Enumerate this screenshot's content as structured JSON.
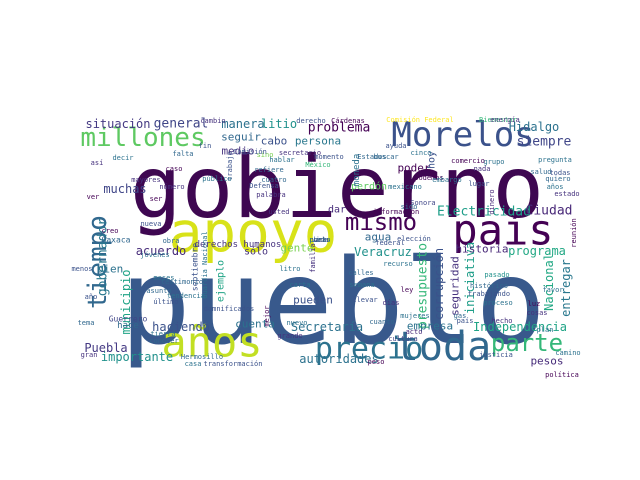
{
  "words": [
    {
      "text": "pueblo",
      "color": "#38598c"
    },
    {
      "text": "gobierno",
      "color": "#3e0751"
    },
    {
      "text": "Morelos",
      "color": "#3b528b"
    },
    {
      "text": "apoyo",
      "color": "#d8e219"
    },
    {
      "text": "toda",
      "color": "#31688e"
    },
    {
      "text": "años",
      "color": "#c2df23"
    },
    {
      "text": "país",
      "color": "#440154"
    },
    {
      "text": "precio",
      "color": "#2c728e"
    },
    {
      "text": "parte",
      "color": "#35b779"
    },
    {
      "text": "millones",
      "color": "#5ec962"
    },
    {
      "text": "tiempo",
      "color": "#31688e"
    },
    {
      "text": "mismo",
      "color": "#440154"
    },
    {
      "text": "Electricidad",
      "color": "#1f9e89"
    },
    {
      "text": "Ciudad",
      "color": "#482878"
    },
    {
      "text": "Independencia",
      "color": "#20a486"
    },
    {
      "text": "Nacional",
      "color": "#22a884"
    },
    {
      "text": "entregar",
      "color": "#2a788e"
    },
    {
      "text": "Puebla",
      "color": "#443983"
    },
    {
      "text": "importante",
      "color": "#21918c"
    },
    {
      "text": "autoridades",
      "color": "#2c728e"
    },
    {
      "text": "pesos",
      "color": "#472c7a"
    },
    {
      "text": "presupuesto",
      "color": "#35b779"
    },
    {
      "text": "corrupción",
      "color": "#3b528b"
    },
    {
      "text": "seguridad",
      "color": "#46327e"
    },
    {
      "text": "iniciativa",
      "color": "#1f9e89"
    },
    {
      "text": "Hidalgo",
      "color": "#2c728e"
    },
    {
      "text": "siempre",
      "color": "#404688"
    },
    {
      "text": "Secretaría",
      "color": "#2c728e"
    },
    {
      "text": "historia",
      "color": "#482878"
    },
    {
      "text": "programa",
      "color": "#22a884"
    },
    {
      "text": "gobernador",
      "color": "#2a788e"
    },
    {
      "text": "municipio",
      "color": "#20a486"
    },
    {
      "text": "haciendo",
      "color": "#3b528b"
    },
    {
      "text": "situación",
      "color": "#443983"
    },
    {
      "text": "general",
      "color": "#404688"
    },
    {
      "text": "manera",
      "color": "#2c728e"
    },
    {
      "text": "litio",
      "color": "#21918c"
    },
    {
      "text": "problema",
      "color": "#440154"
    },
    {
      "text": "seguir",
      "color": "#31688e"
    },
    {
      "text": "cabo",
      "color": "#3b528b"
    },
    {
      "text": "persona",
      "color": "#2a788e"
    },
    {
      "text": "medio",
      "color": "#46327e"
    },
    {
      "text": "acuerdo",
      "color": "#472c7a"
    },
    {
      "text": "muchas",
      "color": "#404688"
    },
    {
      "text": "bien",
      "color": "#2c728e"
    },
    {
      "text": "gente",
      "color": "#7ad151"
    },
    {
      "text": "cuenta",
      "color": "#2c728e"
    },
    {
      "text": "pueden",
      "color": "#3b528b"
    },
    {
      "text": "agua",
      "color": "#31688e"
    },
    {
      "text": "Veracruz",
      "color": "#21918c"
    },
    {
      "text": "empresa",
      "color": "#2c728e"
    },
    {
      "text": "poder",
      "color": "#440154"
    },
    {
      "text": "hoy",
      "color": "#3b528b"
    },
    {
      "text": "perdón",
      "color": "#5ec962"
    },
    {
      "text": "moneda",
      "color": "#2c728e"
    },
    {
      "text": "dar",
      "color": "#472c7a"
    },
    {
      "text": "sólo",
      "color": "#46327e"
    },
    {
      "text": "ejemplo",
      "color": "#20a486"
    },
    {
      "text": "derechos humanos",
      "color": "#46327e"
    },
    {
      "text": "hace",
      "color": "#31688e"
    },
    {
      "text": "Guerrero",
      "color": "#404688"
    },
    {
      "text": "Oaxaca",
      "color": "#31688e"
    },
    {
      "text": "septiembre",
      "color": "#3b528b"
    },
    {
      "text": "Guardia Nacional",
      "color": "#2c728e"
    },
    {
      "text": "Comisión Federal",
      "color": "#fde725"
    },
    {
      "text": "Bienestar",
      "color": "#35b779"
    },
    {
      "text": "creo",
      "color": "#440154"
    },
    {
      "text": "nuevo",
      "color": "#2c728e"
    },
    {
      "text": "usted",
      "color": "#46327e"
    },
    {
      "text": "cuanto",
      "color": "#31688e"
    },
    {
      "text": "federal",
      "color": "#3b528b"
    },
    {
      "text": "información",
      "color": "#440154"
    },
    {
      "text": "México",
      "color": "#35b779"
    },
    {
      "text": "mexicano",
      "color": "#2c728e"
    },
    {
      "text": "trabajo",
      "color": "#3b528b"
    },
    {
      "text": "Sonora",
      "color": "#404688"
    },
    {
      "text": "podemos",
      "color": "#440154"
    },
    {
      "text": "sido",
      "color": "#31688e"
    },
    {
      "text": "cinco",
      "color": "#2c728e"
    },
    {
      "text": "todas",
      "color": "#3b528b"
    },
    {
      "text": "quiero",
      "color": "#31688e"
    },
    {
      "text": "años",
      "color": "#2c728e"
    },
    {
      "text": "dinero",
      "color": "#482878"
    },
    {
      "text": "nada",
      "color": "#46327e"
    },
    {
      "text": "reunión",
      "color": "#440154"
    },
    {
      "text": "favor",
      "color": "#2c728e"
    },
    {
      "text": "proceso",
      "color": "#2c728e"
    },
    {
      "text": "trabajando",
      "color": "#3b528b"
    },
    {
      "text": "histórico",
      "color": "#31688e"
    },
    {
      "text": "pasado",
      "color": "#21918c"
    },
    {
      "text": "hecho",
      "color": "#46327e"
    },
    {
      "text": "política",
      "color": "#440154"
    },
    {
      "text": "camino",
      "color": "#2c728e"
    },
    {
      "text": "justicia",
      "color": "#3b528b"
    },
    {
      "text": "peso",
      "color": "#440154"
    },
    {
      "text": "acto",
      "color": "#482878"
    },
    {
      "text": "cultura",
      "color": "#404688"
    },
    {
      "text": "semana",
      "color": "#2c728e"
    },
    {
      "text": "llevar",
      "color": "#3b528b"
    },
    {
      "text": "calles",
      "color": "#31688e"
    },
    {
      "text": "litro",
      "color": "#2c728e"
    },
    {
      "text": "cuatro",
      "color": "#31688e"
    },
    {
      "text": "sino",
      "color": "#7ad151"
    },
    {
      "text": "Defensa",
      "color": "#3b528b"
    },
    {
      "text": "palabra",
      "color": "#46327e"
    },
    {
      "text": "público",
      "color": "#2c728e"
    },
    {
      "text": "número",
      "color": "#46327e"
    },
    {
      "text": "último",
      "color": "#3b528b"
    },
    {
      "text": "tierra",
      "color": "#2c728e"
    },
    {
      "text": "conocer",
      "color": "#31688e"
    },
    {
      "text": "mayores",
      "color": "#46327e"
    },
    {
      "text": "asunto",
      "color": "#31688e"
    },
    {
      "text": "meses",
      "color": "#2c728e"
    },
    {
      "text": "nueva",
      "color": "#3b528b"
    },
    {
      "text": "caso",
      "color": "#440154"
    },
    {
      "text": "gran",
      "color": "#46327e"
    },
    {
      "text": "casa",
      "color": "#2c728e"
    },
    {
      "text": "transformación",
      "color": "#3b528b"
    },
    {
      "text": "testimonio",
      "color": "#31688e"
    },
    {
      "text": "tendencia",
      "color": "#2c728e"
    },
    {
      "text": "damnificados",
      "color": "#3b528b"
    },
    {
      "text": "familia",
      "color": "#46327e"
    },
    {
      "text": "recurso",
      "color": "#2c728e"
    },
    {
      "text": "Comisión",
      "color": "#3b528b"
    },
    {
      "text": "refiere",
      "color": "#31688e"
    },
    {
      "text": "Cárdenas",
      "color": "#440154"
    },
    {
      "text": "derecho",
      "color": "#3b528b"
    },
    {
      "text": "cambio",
      "color": "#46327e"
    },
    {
      "text": "buscar",
      "color": "#31688e"
    },
    {
      "text": "grupo",
      "color": "#2c728e"
    },
    {
      "text": "lugar",
      "color": "#3b528b"
    },
    {
      "text": "estado",
      "color": "#46327e"
    },
    {
      "text": "embargo",
      "color": "#2c728e"
    },
    {
      "text": "cosa",
      "color": "#440154"
    },
    {
      "text": "obra",
      "color": "#31688e"
    },
    {
      "text": "jóvenes",
      "color": "#2c728e"
    },
    {
      "text": "menos",
      "color": "#3b528b"
    },
    {
      "text": "grande",
      "color": "#46327e"
    },
    {
      "text": "carta",
      "color": "#2c728e"
    },
    {
      "text": "Hermosillo",
      "color": "#31688e"
    },
    {
      "text": "mejor",
      "color": "#440154"
    },
    {
      "text": "momento",
      "color": "#3b528b"
    },
    {
      "text": "secretario",
      "color": "#46327e"
    },
    {
      "text": "hablar",
      "color": "#2c728e"
    },
    {
      "text": "Estados",
      "color": "#31688e"
    },
    {
      "text": "ayuda",
      "color": "#3b528b"
    },
    {
      "text": "comercio",
      "color": "#440154"
    },
    {
      "text": "energía",
      "color": "#46327e"
    },
    {
      "text": "pregunta",
      "color": "#2c728e"
    },
    {
      "text": "salud",
      "color": "#31688e"
    },
    {
      "text": "elección",
      "color": "#3b528b"
    },
    {
      "text": "ley",
      "color": "#440154"
    },
    {
      "text": "días",
      "color": "#46327e"
    },
    {
      "text": "mujeres",
      "color": "#2c728e"
    },
    {
      "text": "gas",
      "color": "#31688e"
    },
    {
      "text": "país",
      "color": "#3b528b"
    },
    {
      "text": "luz",
      "color": "#440154"
    },
    {
      "text": "cosas",
      "color": "#46327e"
    },
    {
      "text": "plan",
      "color": "#2c728e"
    },
    {
      "text": "tema",
      "color": "#31688e"
    },
    {
      "text": "año",
      "color": "#3b528b"
    },
    {
      "text": "ver",
      "color": "#440154"
    },
    {
      "text": "así",
      "color": "#46327e"
    },
    {
      "text": "decir",
      "color": "#2c728e"
    },
    {
      "text": "falta",
      "color": "#31688e"
    },
    {
      "text": "fin",
      "color": "#3b528b"
    },
    {
      "text": "ser",
      "color": "#440154"
    },
    {
      "text": "vez",
      "color": "#46327e"
    },
    {
      "text": "punto",
      "color": "#2c728e"
    },
    {
      "text": "obras",
      "color": "#31688e"
    },
    {
      "text": "vida",
      "color": "#3b528b"
    }
  ]
}
